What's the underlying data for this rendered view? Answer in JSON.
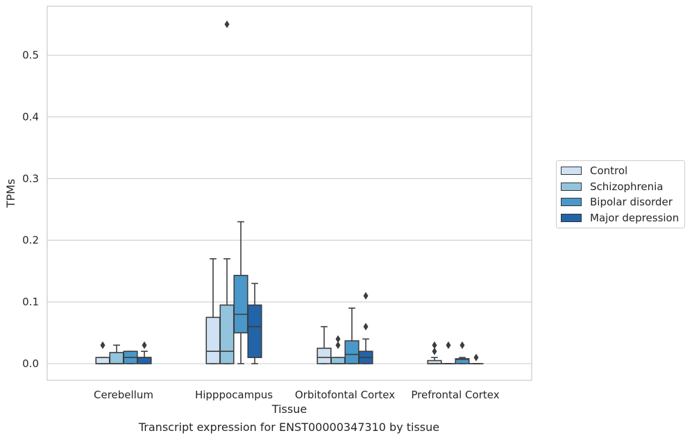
{
  "chart_data": {
    "type": "box",
    "caption": "Transcript expression for ENST00000347310 by tissue",
    "xlabel": "Tissue",
    "ylabel": "TPMs",
    "ylim": [
      -0.027,
      0.578
    ],
    "yticks": [
      0.0,
      0.1,
      0.2,
      0.3,
      0.4,
      0.5
    ],
    "ytick_labels": [
      "0.0",
      "0.1",
      "0.2",
      "0.3",
      "0.4",
      "0.5"
    ],
    "grid": true,
    "legend_position": "right",
    "categories": [
      "Cerebellum",
      "Hipppocampus",
      "Orbitofontal Cortex",
      "Prefrontal Cortex"
    ],
    "series": [
      {
        "name": "Control",
        "color": "#cfe1f2",
        "boxes": [
          {
            "q1": 0.0,
            "median": 0.0,
            "q3": 0.01,
            "whisker_low": 0.0,
            "whisker_high": 0.01,
            "outliers": [
              0.03
            ]
          },
          {
            "q1": 0.0,
            "median": 0.02,
            "q3": 0.075,
            "whisker_low": 0.0,
            "whisker_high": 0.17,
            "outliers": []
          },
          {
            "q1": 0.0,
            "median": 0.01,
            "q3": 0.025,
            "whisker_low": 0.0,
            "whisker_high": 0.06,
            "outliers": []
          },
          {
            "q1": 0.0,
            "median": 0.0,
            "q3": 0.005,
            "whisker_low": 0.0,
            "whisker_high": 0.01,
            "outliers": [
              0.02,
              0.03
            ]
          }
        ]
      },
      {
        "name": "Schizophrenia",
        "color": "#93c4de",
        "boxes": [
          {
            "q1": 0.0,
            "median": 0.0,
            "q3": 0.018,
            "whisker_low": 0.0,
            "whisker_high": 0.03,
            "outliers": []
          },
          {
            "q1": 0.0,
            "median": 0.02,
            "q3": 0.095,
            "whisker_low": 0.0,
            "whisker_high": 0.17,
            "outliers": [
              0.55
            ]
          },
          {
            "q1": 0.0,
            "median": 0.0,
            "q3": 0.01,
            "whisker_low": 0.0,
            "whisker_high": 0.01,
            "outliers": [
              0.03,
              0.04
            ]
          },
          {
            "q1": 0.0,
            "median": 0.0,
            "q3": 0.0,
            "whisker_low": 0.0,
            "whisker_high": 0.0,
            "outliers": [
              0.03
            ]
          }
        ]
      },
      {
        "name": "Bipolar disorder",
        "color": "#4a98c9",
        "boxes": [
          {
            "q1": 0.0,
            "median": 0.01,
            "q3": 0.02,
            "whisker_low": 0.0,
            "whisker_high": 0.02,
            "outliers": []
          },
          {
            "q1": 0.05,
            "median": 0.08,
            "q3": 0.143,
            "whisker_low": 0.0,
            "whisker_high": 0.23,
            "outliers": []
          },
          {
            "q1": 0.0,
            "median": 0.015,
            "q3": 0.037,
            "whisker_low": 0.0,
            "whisker_high": 0.09,
            "outliers": []
          },
          {
            "q1": 0.0,
            "median": 0.007,
            "q3": 0.008,
            "whisker_low": 0.0,
            "whisker_high": 0.01,
            "outliers": [
              0.03
            ]
          }
        ]
      },
      {
        "name": "Major depression",
        "color": "#2264a8",
        "boxes": [
          {
            "q1": 0.0,
            "median": 0.01,
            "q3": 0.01,
            "whisker_low": 0.0,
            "whisker_high": 0.02,
            "outliers": [
              0.03
            ]
          },
          {
            "q1": 0.01,
            "median": 0.06,
            "q3": 0.095,
            "whisker_low": 0.0,
            "whisker_high": 0.13,
            "outliers": []
          },
          {
            "q1": 0.0,
            "median": 0.01,
            "q3": 0.02,
            "whisker_low": 0.0,
            "whisker_high": 0.04,
            "outliers": [
              0.06,
              0.11
            ]
          },
          {
            "q1": 0.0,
            "median": 0.0,
            "q3": 0.0,
            "whisker_low": 0.0,
            "whisker_high": 0.0,
            "outliers": [
              0.01
            ]
          }
        ]
      }
    ]
  }
}
